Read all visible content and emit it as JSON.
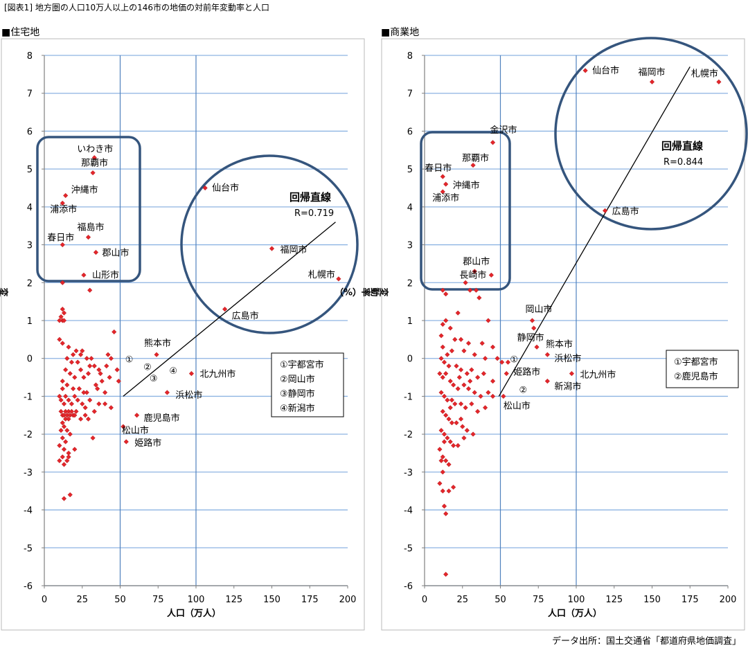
{
  "figure_title": "[図表1] 地方圏の人口10万人以上の146市の地価の対前年変動率と人口",
  "source": "データ出所：国土交通省「都道府県地価調査」",
  "chart_data": [
    {
      "type": "scatter",
      "title": "■住宅地",
      "xlabel": "人口（万人）",
      "ylabel": "変動率（%）",
      "xlim": [
        0,
        200
      ],
      "ylim": [
        -6,
        8
      ],
      "xticks": [
        "0",
        "25",
        "50",
        "75",
        "100",
        "125",
        "150",
        "175",
        "200"
      ],
      "yticks": [
        "8",
        "7",
        "6",
        "5",
        "4",
        "3",
        "2",
        "1",
        "0",
        "-1",
        "-2",
        "-3",
        "-4",
        "-5",
        "-6"
      ],
      "grid": "horizontal",
      "regression": {
        "label": "回帰直線",
        "r_label": "R=0.719",
        "from": [
          52,
          -1.0
        ],
        "to": [
          192,
          3.6
        ]
      },
      "legend_box": [
        "①宇都宮市",
        "②岡山市",
        "③静岡市",
        "④新潟市"
      ],
      "markers": [
        {
          "text": "①",
          "x": 56,
          "y": 0.0
        },
        {
          "text": "②",
          "x": 68,
          "y": -0.2
        },
        {
          "text": "③",
          "x": 72,
          "y": -0.5
        },
        {
          "text": "④",
          "x": 85,
          "y": -0.3
        }
      ],
      "labeled_points": [
        {
          "name": "いわき市",
          "x": 33,
          "y": 5.3
        },
        {
          "name": "那覇市",
          "x": 32,
          "y": 4.9
        },
        {
          "name": "沖縄市",
          "x": 14,
          "y": 4.3
        },
        {
          "name": "浦添市",
          "x": 12,
          "y": 4.1
        },
        {
          "name": "福島市",
          "x": 29,
          "y": 3.2
        },
        {
          "name": "春日市",
          "x": 12,
          "y": 3.0
        },
        {
          "name": "郡山市",
          "x": 34,
          "y": 2.8
        },
        {
          "name": "山形市",
          "x": 26,
          "y": 2.2
        },
        {
          "name": "仙台市",
          "x": 106,
          "y": 4.5
        },
        {
          "name": "福岡市",
          "x": 150,
          "y": 2.9
        },
        {
          "name": "札幌市",
          "x": 194,
          "y": 2.1
        },
        {
          "name": "広島市",
          "x": 119,
          "y": 1.3
        },
        {
          "name": "熊本市",
          "x": 74,
          "y": 0.1
        },
        {
          "name": "北九州市",
          "x": 97,
          "y": -0.4
        },
        {
          "name": "浜松市",
          "x": 81,
          "y": -0.9
        },
        {
          "name": "鹿児島市",
          "x": 61,
          "y": -1.5
        },
        {
          "name": "松山市",
          "x": 52,
          "y": -1.8
        },
        {
          "name": "姫路市",
          "x": 54,
          "y": -2.2
        }
      ],
      "unlabeled_points": [
        [
          12,
          2.0
        ],
        [
          30,
          1.8
        ],
        [
          12,
          1.3
        ],
        [
          13,
          1.2
        ],
        [
          11,
          1.1
        ],
        [
          12,
          1.0
        ],
        [
          10,
          1.0
        ],
        [
          13,
          1.0
        ],
        [
          46,
          0.7
        ],
        [
          10,
          0.5
        ],
        [
          12,
          0.4
        ],
        [
          16,
          0.3
        ],
        [
          21,
          0.2
        ],
        [
          25,
          0.2
        ],
        [
          19,
          0.1
        ],
        [
          24,
          0.1
        ],
        [
          28,
          0.0
        ],
        [
          31,
          0.0
        ],
        [
          42,
          0.1
        ],
        [
          44,
          0.0
        ],
        [
          15,
          0.0
        ],
        [
          18,
          -0.1
        ],
        [
          22,
          -0.1
        ],
        [
          33,
          -0.2
        ],
        [
          36,
          -0.3
        ],
        [
          41,
          -0.2
        ],
        [
          48,
          -0.3
        ],
        [
          14,
          -0.3
        ],
        [
          17,
          -0.4
        ],
        [
          20,
          -0.5
        ],
        [
          26,
          -0.5
        ],
        [
          29,
          -0.4
        ],
        [
          38,
          -0.6
        ],
        [
          43,
          -0.5
        ],
        [
          49,
          -0.6
        ],
        [
          12,
          -0.6
        ],
        [
          15,
          -0.7
        ],
        [
          19,
          -0.8
        ],
        [
          23,
          -0.8
        ],
        [
          28,
          -0.9
        ],
        [
          35,
          -0.8
        ],
        [
          40,
          -0.9
        ],
        [
          10,
          -1.0
        ],
        [
          11,
          -1.1
        ],
        [
          13,
          -1.2
        ],
        [
          14,
          -1.0
        ],
        [
          16,
          -1.1
        ],
        [
          18,
          -1.2
        ],
        [
          20,
          -1.0
        ],
        [
          22,
          -1.1
        ],
        [
          25,
          -1.2
        ],
        [
          27,
          -1.3
        ],
        [
          30,
          -1.1
        ],
        [
          33,
          -1.4
        ],
        [
          36,
          -1.2
        ],
        [
          40,
          -1.2
        ],
        [
          44,
          -1.3
        ],
        [
          11,
          -1.4
        ],
        [
          12,
          -1.5
        ],
        [
          13,
          -1.5
        ],
        [
          14,
          -1.4
        ],
        [
          15,
          -1.5
        ],
        [
          16,
          -1.4
        ],
        [
          17,
          -1.5
        ],
        [
          18,
          -1.4
        ],
        [
          19,
          -1.5
        ],
        [
          20,
          -1.5
        ],
        [
          21,
          -1.4
        ],
        [
          14,
          -1.6
        ],
        [
          16,
          -1.6
        ],
        [
          27,
          -1.5
        ],
        [
          29,
          -1.6
        ],
        [
          12,
          -1.7
        ],
        [
          13,
          -1.8
        ],
        [
          11,
          -1.9
        ],
        [
          15,
          -1.9
        ],
        [
          17,
          -2.0
        ],
        [
          12,
          -2.1
        ],
        [
          14,
          -2.2
        ],
        [
          10,
          -2.3
        ],
        [
          13,
          -2.4
        ],
        [
          16,
          -2.5
        ],
        [
          20,
          -2.4
        ],
        [
          12,
          -2.6
        ],
        [
          15,
          -2.7
        ],
        [
          10,
          -2.7
        ],
        [
          13,
          -2.8
        ],
        [
          16,
          -2.6
        ],
        [
          32,
          -2.1
        ],
        [
          13,
          -3.7
        ],
        [
          17,
          -3.6
        ],
        [
          24,
          -1.6
        ],
        [
          26,
          -0.9
        ],
        [
          37,
          -0.4
        ],
        [
          30,
          -0.2
        ],
        [
          34,
          -0.7
        ],
        [
          24,
          -0.3
        ],
        [
          12,
          -0.8
        ]
      ]
    },
    {
      "type": "scatter",
      "title": "■商業地",
      "xlabel": "人口（万人）",
      "ylabel": "変動率（%）",
      "xlim": [
        0,
        200
      ],
      "ylim": [
        -6,
        8
      ],
      "xticks": [
        "0",
        "25",
        "50",
        "75",
        "100",
        "125",
        "150",
        "175",
        "200"
      ],
      "yticks": [
        "8",
        "7",
        "6",
        "5",
        "4",
        "3",
        "2",
        "1",
        "0",
        "-1",
        "-2",
        "-3",
        "-4",
        "-5",
        "-6"
      ],
      "grid": "horizontal",
      "regression": {
        "label": "回帰直線",
        "r_label": "R=0.844",
        "from": [
          49,
          -1.0
        ],
        "to": [
          175,
          7.7
        ]
      },
      "legend_box": [
        "①宇都宮市",
        "②鹿児島市"
      ],
      "markers": [
        {
          "text": "①",
          "x": 59,
          "y": 0.0
        },
        {
          "text": "②",
          "x": 65,
          "y": -0.8
        }
      ],
      "labeled_points": [
        {
          "name": "仙台市",
          "x": 106,
          "y": 7.6
        },
        {
          "name": "福岡市",
          "x": 150,
          "y": 7.3
        },
        {
          "name": "札幌市",
          "x": 194,
          "y": 7.3
        },
        {
          "name": "金沢市",
          "x": 45,
          "y": 5.7
        },
        {
          "name": "那覇市",
          "x": 32,
          "y": 5.1
        },
        {
          "name": "春日市",
          "x": 12,
          "y": 4.8
        },
        {
          "name": "沖縄市",
          "x": 14,
          "y": 4.6
        },
        {
          "name": "浦添市",
          "x": 12,
          "y": 4.4
        },
        {
          "name": "広島市",
          "x": 119,
          "y": 3.9
        },
        {
          "name": "郡山市",
          "x": 33,
          "y": 2.3
        },
        {
          "name": "長崎市",
          "x": 44,
          "y": 2.2
        },
        {
          "name": "岡山市",
          "x": 71,
          "y": 1.0
        },
        {
          "name": "静岡市",
          "x": 72,
          "y": 0.8
        },
        {
          "name": "熊本市",
          "x": 74,
          "y": 0.3
        },
        {
          "name": "浜松市",
          "x": 81,
          "y": 0.1
        },
        {
          "name": "北九州市",
          "x": 97,
          "y": -0.4
        },
        {
          "name": "姫路市",
          "x": 54,
          "y": -0.4
        },
        {
          "name": "新潟市",
          "x": 81,
          "y": -0.6
        },
        {
          "name": "松山市",
          "x": 52,
          "y": -1.0
        }
      ],
      "unlabeled_points": [
        [
          12,
          1.8
        ],
        [
          14,
          1.7
        ],
        [
          27,
          2.0
        ],
        [
          30,
          1.8
        ],
        [
          34,
          1.8
        ],
        [
          36,
          1.6
        ],
        [
          22,
          1.2
        ],
        [
          14,
          1.0
        ],
        [
          12,
          0.9
        ],
        [
          42,
          1.0
        ],
        [
          17,
          0.8
        ],
        [
          11,
          0.6
        ],
        [
          20,
          0.5
        ],
        [
          24,
          0.5
        ],
        [
          29,
          0.4
        ],
        [
          38,
          0.4
        ],
        [
          12,
          0.3
        ],
        [
          45,
          0.3
        ],
        [
          15,
          0.1
        ],
        [
          18,
          0.2
        ],
        [
          26,
          0.2
        ],
        [
          33,
          0.1
        ],
        [
          40,
          0.0
        ],
        [
          48,
          0.0
        ],
        [
          11,
          0.0
        ],
        [
          13,
          -0.1
        ],
        [
          16,
          -0.2
        ],
        [
          21,
          -0.2
        ],
        [
          24,
          -0.3
        ],
        [
          28,
          -0.4
        ],
        [
          31,
          -0.3
        ],
        [
          35,
          -0.5
        ],
        [
          39,
          -0.4
        ],
        [
          45,
          -0.6
        ],
        [
          51,
          -0.1
        ],
        [
          55,
          -0.1
        ],
        [
          10,
          -0.4
        ],
        [
          12,
          -0.5
        ],
        [
          14,
          -0.4
        ],
        [
          17,
          -0.6
        ],
        [
          19,
          -0.7
        ],
        [
          22,
          -0.8
        ],
        [
          26,
          -0.7
        ],
        [
          29,
          -0.8
        ],
        [
          33,
          -0.9
        ],
        [
          37,
          -1.0
        ],
        [
          42,
          -0.9
        ],
        [
          45,
          -1.0
        ],
        [
          11,
          -0.9
        ],
        [
          13,
          -1.0
        ],
        [
          15,
          -1.1
        ],
        [
          18,
          -1.1
        ],
        [
          20,
          -1.2
        ],
        [
          24,
          -1.2
        ],
        [
          27,
          -1.3
        ],
        [
          31,
          -1.2
        ],
        [
          35,
          -1.4
        ],
        [
          40,
          -1.3
        ],
        [
          12,
          -1.4
        ],
        [
          14,
          -1.5
        ],
        [
          16,
          -1.6
        ],
        [
          18,
          -1.7
        ],
        [
          21,
          -1.7
        ],
        [
          25,
          -1.8
        ],
        [
          28,
          -1.9
        ],
        [
          11,
          -1.9
        ],
        [
          13,
          -2.0
        ],
        [
          15,
          -2.1
        ],
        [
          17,
          -2.2
        ],
        [
          19,
          -2.3
        ],
        [
          22,
          -2.3
        ],
        [
          26,
          -2.1
        ],
        [
          32,
          -2.0
        ],
        [
          10,
          -2.4
        ],
        [
          12,
          -2.6
        ],
        [
          14,
          -2.7
        ],
        [
          16,
          -2.8
        ],
        [
          12,
          -3.0
        ],
        [
          10,
          -3.3
        ],
        [
          12,
          -3.5
        ],
        [
          16,
          -3.5
        ],
        [
          19,
          -3.4
        ],
        [
          13,
          -3.9
        ],
        [
          14,
          -4.1
        ],
        [
          14,
          -5.7
        ],
        [
          11,
          -2.7
        ],
        [
          13,
          -2.2
        ],
        [
          24,
          -1.6
        ],
        [
          17,
          -1.3
        ],
        [
          23,
          -0.5
        ],
        [
          30,
          -0.6
        ]
      ]
    }
  ]
}
